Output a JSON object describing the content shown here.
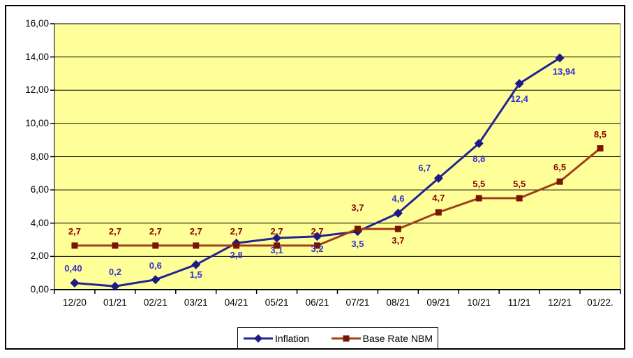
{
  "chart_data": {
    "type": "line",
    "title": "",
    "xlabel": "",
    "ylabel": "",
    "plot_bg": "#FFFF99",
    "grid": true,
    "legend_position": "bottom-center",
    "categories": [
      "12/20",
      "01/21",
      "02/21",
      "03/21",
      "04/21",
      "05/21",
      "06/21",
      "07/21",
      "08/21",
      "09/21",
      "10/21",
      "11/21",
      "12/21",
      "01/22."
    ],
    "y_axis": {
      "min": 0,
      "max": 16,
      "step": 2,
      "tick_labels": [
        "0,00",
        "2,00",
        "4,00",
        "6,00",
        "8,00",
        "10,00",
        "12,00",
        "14,00",
        "16,00"
      ]
    },
    "series": [
      {
        "name": "Inflation",
        "marker": "diamond",
        "color": "#232394",
        "marker_color": "#1B1B85",
        "label_color": "#3333CC",
        "values": [
          0.4,
          0.2,
          0.6,
          1.5,
          2.8,
          3.1,
          3.2,
          3.5,
          4.6,
          6.7,
          8.8,
          12.4,
          13.94,
          null
        ],
        "labels": [
          "0,40",
          "0,2",
          "0,6",
          "1,5",
          "2,8",
          "3,1",
          "3,2",
          "3,5",
          "4,6",
          "6,7",
          "8,8",
          "12,4",
          "13,94",
          ""
        ],
        "label_pos": [
          "above",
          "above",
          "above",
          "below",
          "below",
          "below",
          "below",
          "below",
          "above",
          "above",
          "below",
          "below",
          "below",
          ""
        ],
        "label_dx": [
          -2,
          0,
          0,
          0,
          0,
          0,
          0,
          0,
          0,
          -20,
          0,
          0,
          6,
          0
        ],
        "label_dy": [
          0,
          0,
          0,
          0,
          3,
          3,
          3,
          3,
          0,
          6,
          8,
          7,
          5,
          0
        ]
      },
      {
        "name": "Base Rate NBM",
        "marker": "square",
        "color": "#A0401A",
        "marker_color": "#7A1505",
        "label_color": "#8B0000",
        "values": [
          2.65,
          2.65,
          2.65,
          2.65,
          2.65,
          2.65,
          2.65,
          3.65,
          3.65,
          4.65,
          5.5,
          5.5,
          6.5,
          8.5
        ],
        "labels": [
          "2,7",
          "2,7",
          "2,7",
          "2,7",
          "2,7",
          "2,7",
          "2,7",
          "3,7",
          "3,7",
          "4,7",
          "5,5",
          "5,5",
          "6,5",
          "8,5"
        ],
        "label_pos": [
          "above",
          "above",
          "above",
          "above",
          "above",
          "above",
          "above",
          "above",
          "below",
          "above",
          "above",
          "above",
          "above",
          "above"
        ],
        "label_dx": [
          0,
          0,
          0,
          0,
          0,
          0,
          0,
          0,
          0,
          0,
          0,
          0,
          0,
          0
        ],
        "label_dy": [
          0,
          0,
          0,
          0,
          0,
          0,
          0,
          -10,
          2,
          0,
          0,
          0,
          0,
          0
        ]
      }
    ]
  }
}
